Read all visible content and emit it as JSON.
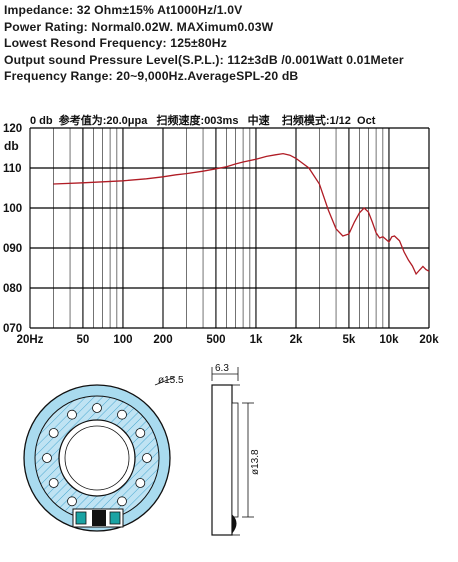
{
  "specs": {
    "impedance": "Impedance: 32 Ohm±15%  At1000Hz/1.0V",
    "power": "Power Rating: Normal0.02W. MAXimum0.03W",
    "resonance": "Lowest Resond Frequency: 125±80Hz",
    "spl": "Output sound Pressure Level(S.P.L.): 112±3dB /0.001Watt 0.01Meter",
    "range": "Frequency Range: 20~9,000Hz.AverageSPL-20 dB"
  },
  "chart_data": {
    "type": "line",
    "title": "0 db  参考值为:20.0μpa   扫频速度:003ms   中速    扫频模式:1/12  Oct",
    "ylabel": "db",
    "xscale": "log",
    "xlim": [
      20,
      20000
    ],
    "ylim": [
      70,
      120
    ],
    "yticks": [
      "070",
      "080",
      "090",
      "100",
      "110",
      "120"
    ],
    "xticks": [
      "20Hz",
      "50",
      "100",
      "200",
      "500",
      "1k",
      "2k",
      "5k",
      "10k",
      "20k"
    ],
    "xtick_values": [
      20,
      50,
      100,
      200,
      500,
      1000,
      2000,
      5000,
      10000,
      20000
    ],
    "grid": true,
    "colors": {
      "curve": "#b01c25",
      "grid": "#000000"
    },
    "series": [
      {
        "x": [
          30,
          50,
          100,
          150,
          200,
          250,
          300,
          400,
          500,
          600,
          700,
          800,
          1000,
          1200,
          1400,
          1600,
          1800,
          2000,
          2500,
          3000,
          3500,
          4000,
          4500,
          5000,
          5500,
          6000,
          6500,
          7000,
          7500,
          8000,
          8500,
          9000,
          10000,
          10500,
          11000,
          12000,
          13000,
          14000,
          15000,
          16000,
          17000,
          18000,
          19000,
          20000
        ],
        "y": [
          106.0,
          106.3,
          106.8,
          107.3,
          107.8,
          108.3,
          108.6,
          109.2,
          109.8,
          110.3,
          111.0,
          111.5,
          112.2,
          112.9,
          113.3,
          113.6,
          113.2,
          112.4,
          110.0,
          106.0,
          99.5,
          94.8,
          93.0,
          93.5,
          96.5,
          98.8,
          100.0,
          99.0,
          96.5,
          93.8,
          92.5,
          92.8,
          91.5,
          92.8,
          93.0,
          91.8,
          89.0,
          87.0,
          85.5,
          83.5,
          84.5,
          85.4,
          84.6,
          84.2
        ]
      }
    ]
  },
  "drawing": {
    "dim_outer": "ø15.5",
    "dim_thickness": "6.3",
    "dim_inner": "ø13.8"
  }
}
